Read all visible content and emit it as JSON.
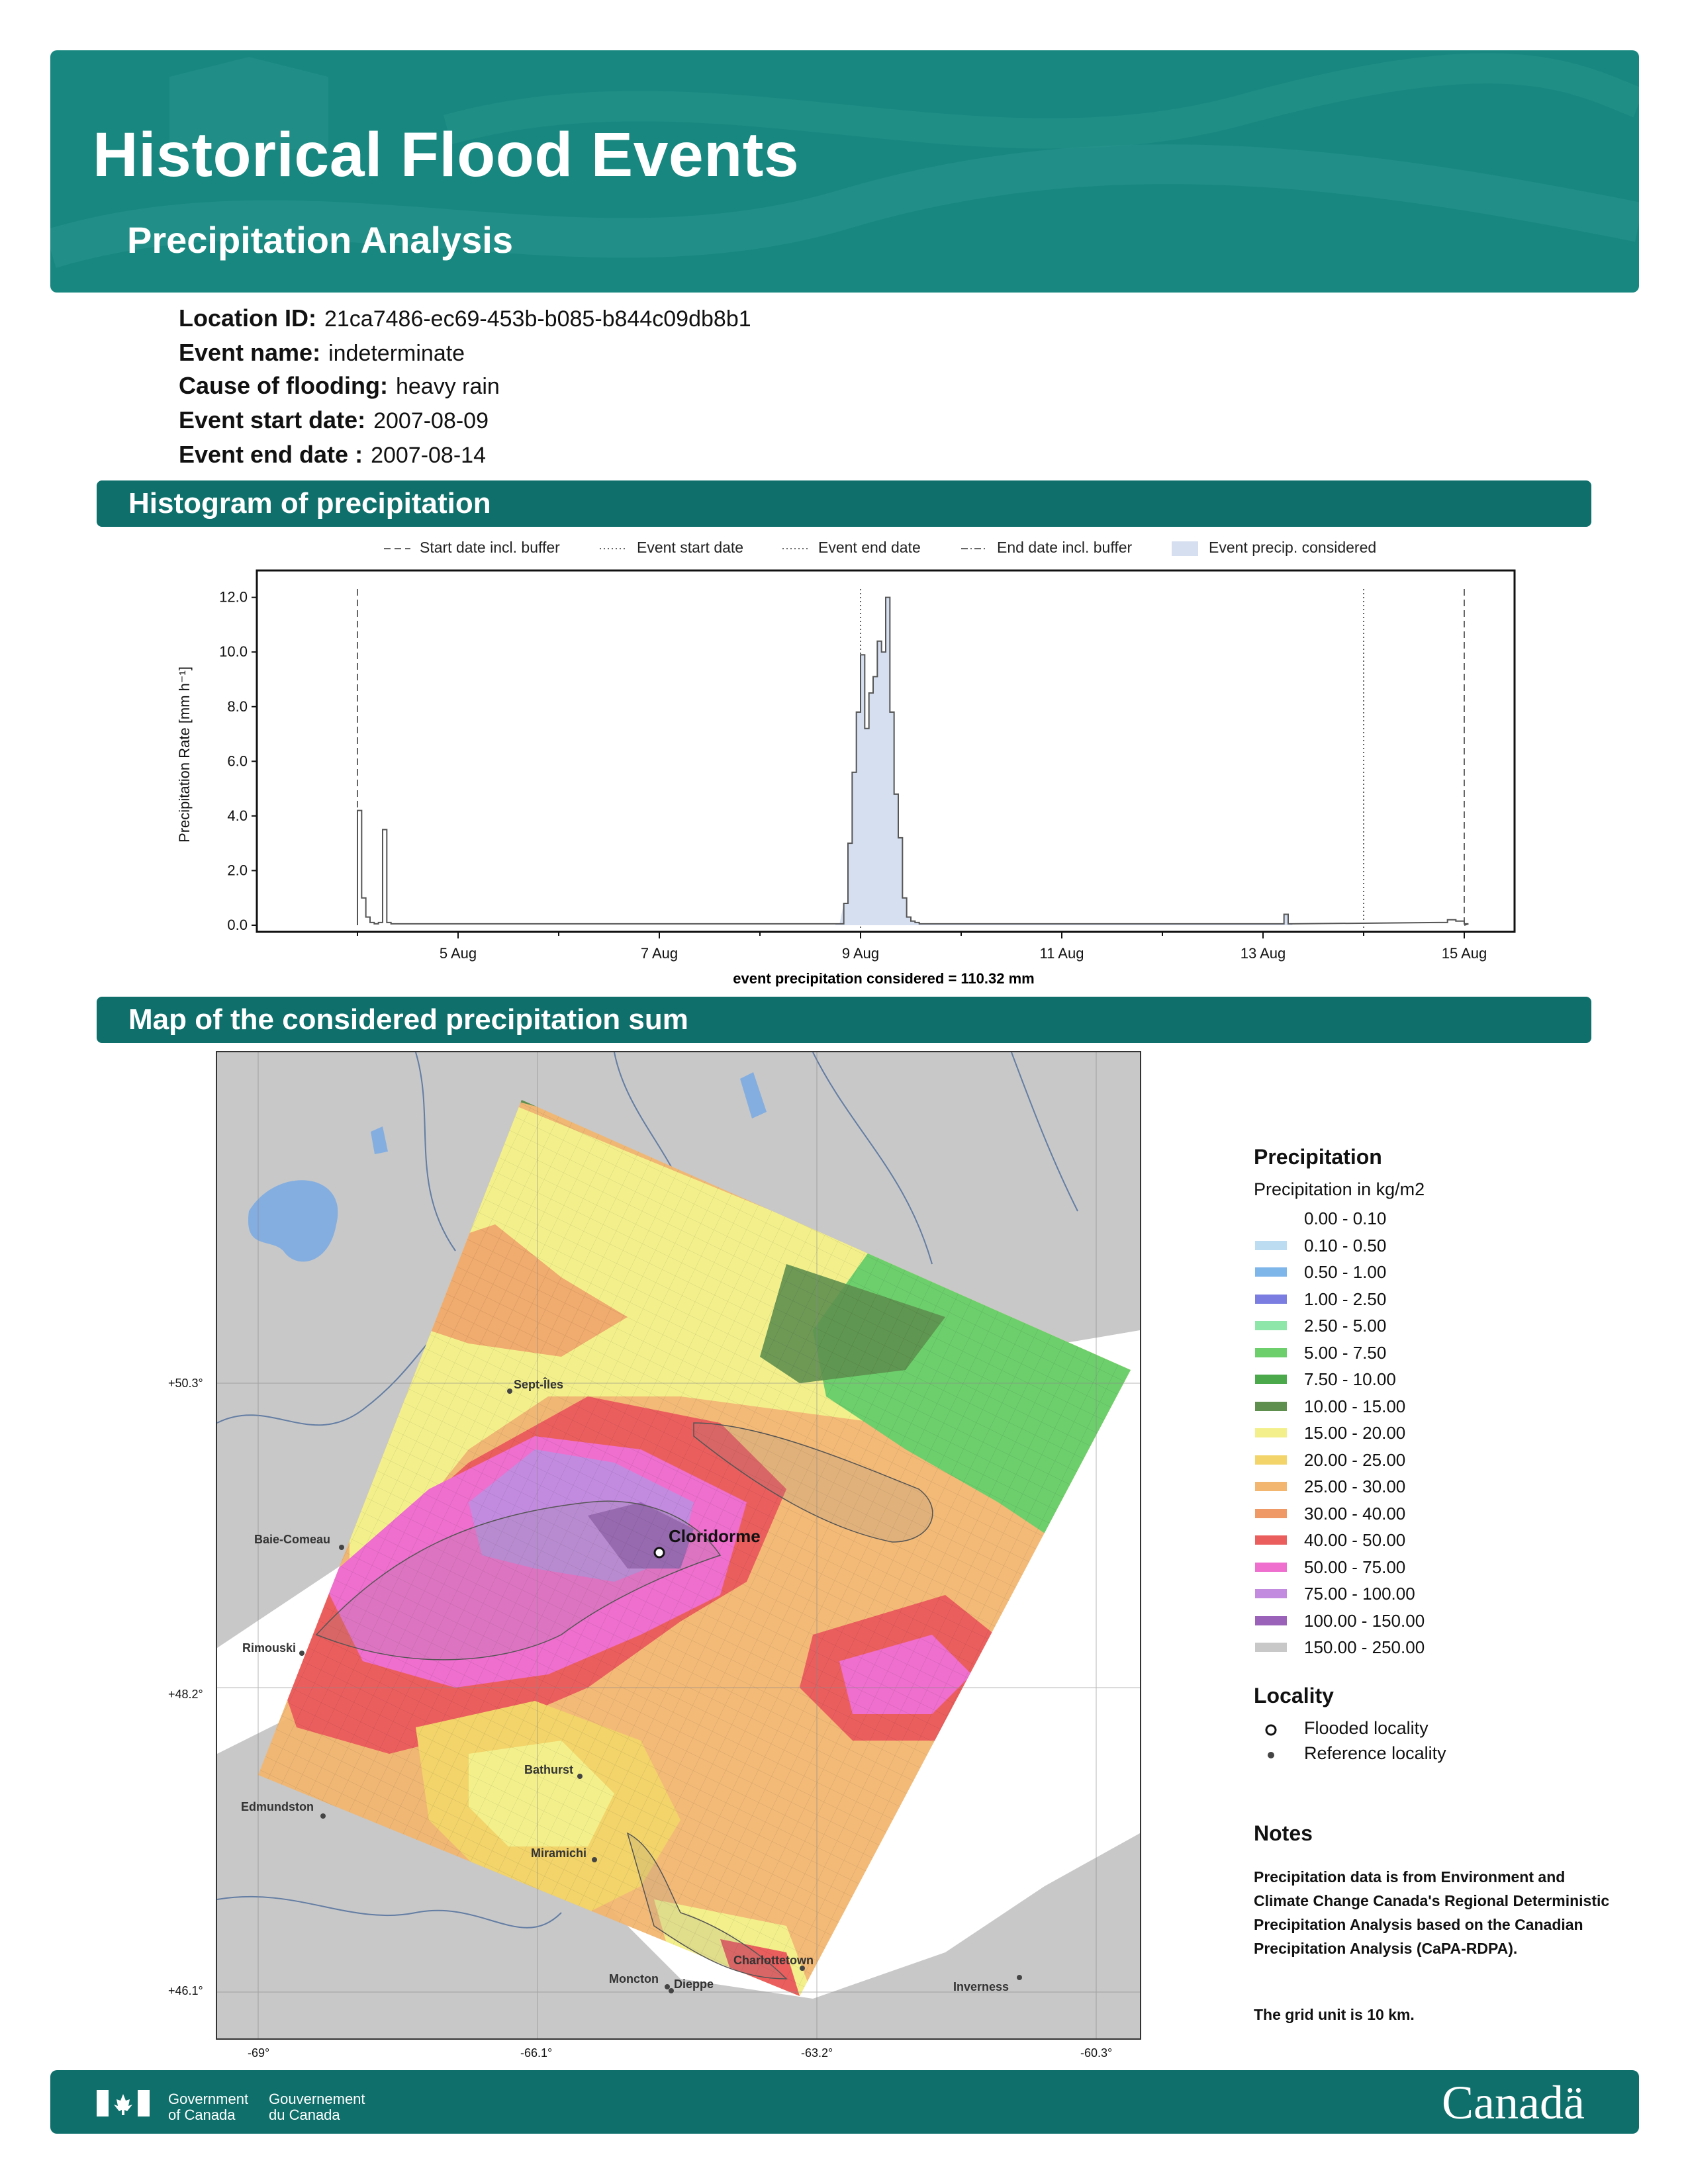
{
  "header": {
    "title": "Historical Flood Events",
    "subtitle": "Precipitation Analysis"
  },
  "event": {
    "location_id_label": "Location ID:",
    "location_id": "21ca7486-ec69-453b-b085-b844c09db8b1",
    "event_name_label": "Event name:",
    "event_name": "indeterminate",
    "cause_label": "Cause of flooding:",
    "cause": "heavy rain",
    "start_label": "Event start date:",
    "start": "2007-08-09",
    "end_label": "Event end date :",
    "end": "2007-08-14"
  },
  "sections": {
    "histogram": "Histogram of precipitation",
    "map": "Map of the considered precipitation sum"
  },
  "colors": {
    "banner": "#17877f",
    "bar": "#0e6f6b",
    "fill": "#d5dff0"
  },
  "chart_data": {
    "type": "area",
    "title": "",
    "xlabel": "event precipitation considered = 110.32 mm",
    "ylabel": "Precipitation Rate [mm h⁻¹]",
    "ylim": [
      0,
      12.5
    ],
    "xlim_days": [
      3.0,
      15.5
    ],
    "y_ticks": [
      "0.0",
      "2.0",
      "4.0",
      "6.0",
      "8.0",
      "10.0",
      "12.0"
    ],
    "x_ticks": [
      "5 Aug",
      "7 Aug",
      "9 Aug",
      "11 Aug",
      "13 Aug",
      "15 Aug"
    ],
    "legend": [
      {
        "label": "Start date incl. buffer",
        "style": "dashed"
      },
      {
        "label": "Event start date",
        "style": "dotted"
      },
      {
        "label": "Event end date",
        "style": "dotted"
      },
      {
        "label": "End date incl. buffer",
        "style": "dashdot"
      },
      {
        "label": "Event precip. considered",
        "style": "fill"
      }
    ],
    "vlines": {
      "start_buffer": "2007-08-04",
      "event_start": "2007-08-09",
      "event_end": "2007-08-14",
      "end_buffer": "2007-08-15"
    },
    "series": [
      {
        "x": [
          "2007-08-04T00",
          "2007-08-04T01",
          "2007-08-04T02",
          "2007-08-04T03",
          "2007-08-04T04",
          "2007-08-04T05",
          "2007-08-04T06",
          "2007-08-04T07",
          "2007-08-04T08",
          "2007-08-04T12",
          "2007-08-05T00",
          "2007-08-08T18",
          "2007-08-08T20",
          "2007-08-08T21",
          "2007-08-08T22",
          "2007-08-08T23",
          "2007-08-09T00",
          "2007-08-09T01",
          "2007-08-09T02",
          "2007-08-09T03",
          "2007-08-09T04",
          "2007-08-09T05",
          "2007-08-09T06",
          "2007-08-09T07",
          "2007-08-09T08",
          "2007-08-09T09",
          "2007-08-09T10",
          "2007-08-09T11",
          "2007-08-09T12",
          "2007-08-09T13",
          "2007-08-09T14",
          "2007-08-09T16",
          "2007-08-09T18",
          "2007-08-13T04",
          "2007-08-13T05",
          "2007-08-13T06",
          "2007-08-14T18",
          "2007-08-14T20",
          "2007-08-14T22",
          "2007-08-15T00"
        ],
        "values": [
          4.2,
          1.0,
          0.3,
          0.1,
          0.05,
          0.1,
          3.5,
          0.1,
          0.05,
          0.05,
          0.05,
          0.05,
          0.8,
          3.0,
          5.6,
          7.8,
          9.9,
          7.2,
          8.5,
          9.1,
          10.4,
          10.0,
          12.0,
          7.8,
          4.8,
          3.2,
          1.0,
          0.3,
          0.15,
          0.1,
          0.05,
          0.05,
          0.05,
          0.05,
          0.4,
          0.05,
          0.1,
          0.2,
          0.15,
          0.05
        ]
      }
    ]
  },
  "map": {
    "localities": [
      {
        "name": "Cloridorme",
        "type": "flooded"
      },
      {
        "name": "Sept-Îles",
        "type": "reference"
      },
      {
        "name": "Baie-Comeau",
        "type": "reference"
      },
      {
        "name": "Rimouski",
        "type": "reference"
      },
      {
        "name": "Bathurst",
        "type": "reference"
      },
      {
        "name": "Edmundston",
        "type": "reference"
      },
      {
        "name": "Miramichi",
        "type": "reference"
      },
      {
        "name": "Charlottetown",
        "type": "reference"
      },
      {
        "name": "Moncton",
        "type": "reference"
      },
      {
        "name": "Dieppe",
        "type": "reference"
      },
      {
        "name": "Inverness",
        "type": "reference"
      }
    ],
    "lat_labels": [
      "+50.3°",
      "+48.2°",
      "+46.1°"
    ],
    "lon_labels": [
      "-69°",
      "-66.1°",
      "-63.2°",
      "-60.3°"
    ]
  },
  "legend": {
    "title": "Precipitation",
    "subtitle": "Precipitation in kg/m2",
    "classes": [
      {
        "range": "0.00 - 0.10",
        "color": "#ffffff"
      },
      {
        "range": "0.10 - 0.50",
        "color": "#bcdcf2"
      },
      {
        "range": "0.50 - 1.00",
        "color": "#7fb6ea"
      },
      {
        "range": "1.00 - 2.50",
        "color": "#7b7ee0"
      },
      {
        "range": "2.50 - 5.00",
        "color": "#8ee6a8"
      },
      {
        "range": "5.00 - 7.50",
        "color": "#6ccf6c"
      },
      {
        "range": "7.50 - 10.00",
        "color": "#4ba84b"
      },
      {
        "range": "10.00 - 15.00",
        "color": "#5e8f4f"
      },
      {
        "range": "15.00 - 20.00",
        "color": "#f3f08c"
      },
      {
        "range": "20.00 - 25.00",
        "color": "#f2d46a"
      },
      {
        "range": "25.00 - 30.00",
        "color": "#f2b670"
      },
      {
        "range": "30.00 - 40.00",
        "color": "#ef9a66"
      },
      {
        "range": "40.00 - 50.00",
        "color": "#eb5e5e"
      },
      {
        "range": "50.00 - 75.00",
        "color": "#ee6fce"
      },
      {
        "range": "75.00 - 100.00",
        "color": "#c38be0"
      },
      {
        "range": "100.00 - 150.00",
        "color": "#9a62b8"
      },
      {
        "range": "150.00 - 250.00",
        "color": "#c8c8c8"
      }
    ],
    "locality_title": "Locality",
    "flooded": "Flooded locality",
    "reference": "Reference locality",
    "notes_title": "Notes",
    "notes_text": "Precipitation data is from Environment and Climate Change Canada's Regional Deterministic Precipitation Analysis based on the Canadian Precipitation Analysis (CaPA-RDPA).",
    "notes_grid": "The grid unit is 10 km."
  },
  "footer": {
    "gov_en_1": "Government",
    "gov_en_2": "of Canada",
    "gov_fr_1": "Gouvernement",
    "gov_fr_2": "du Canada",
    "wordmark": "Canadä"
  }
}
